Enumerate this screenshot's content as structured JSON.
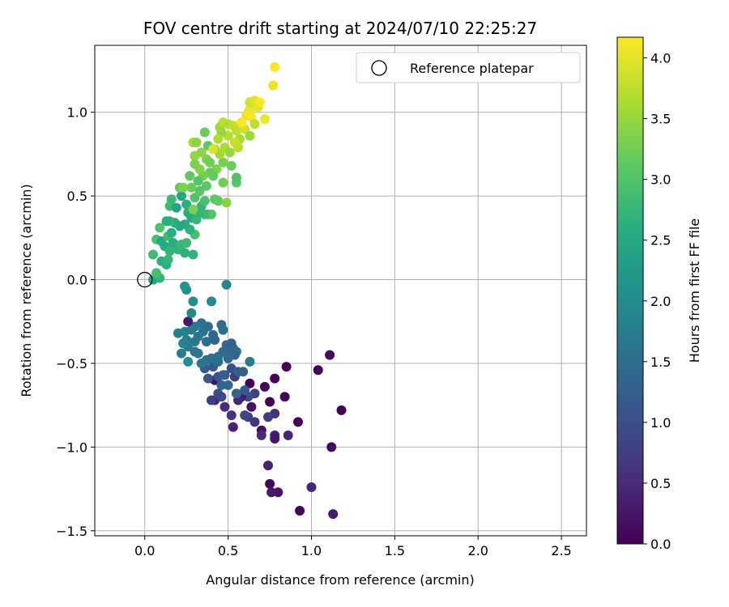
{
  "chart_data": {
    "type": "scatter",
    "title": "FOV centre drift starting at 2024/07/10 22:25:27",
    "xlabel": "Angular distance from reference (arcmin)",
    "ylabel": "Rotation from reference (arcmin)",
    "xlim": [
      -0.3,
      2.65
    ],
    "ylim": [
      -1.53,
      1.4
    ],
    "x_ticks": [
      0.0,
      0.5,
      1.0,
      1.5,
      2.0,
      2.5
    ],
    "x_tick_labels": [
      "0.0",
      "0.5",
      "1.0",
      "1.5",
      "2.0",
      "2.5"
    ],
    "y_ticks": [
      -1.5,
      -1.0,
      -0.5,
      0.0,
      0.5,
      1.0
    ],
    "y_tick_labels": [
      "−1.5",
      "−1.0",
      "−0.5",
      "0.0",
      "0.5",
      "1.0"
    ],
    "grid": true,
    "legend": {
      "placement": "top-right",
      "entries": [
        "Reference platepar"
      ]
    },
    "colorbar": {
      "label": "Hours from first FF file",
      "colormap": "viridis",
      "range": [
        0.0,
        4.17
      ],
      "ticks": [
        0.0,
        0.5,
        1.0,
        1.5,
        2.0,
        2.5,
        3.0,
        3.5,
        4.0
      ],
      "tick_labels": [
        "0.0",
        "0.5",
        "1.0",
        "1.5",
        "2.0",
        "2.5",
        "3.0",
        "3.5",
        "4.0"
      ]
    },
    "reference_point": {
      "name": "Reference platepar",
      "x": 0.0,
      "y": 0.0
    },
    "points": [
      {
        "x": 0.93,
        "y": -1.38,
        "t": 0.06
      },
      {
        "x": 0.75,
        "y": -1.22,
        "t": 0.08
      },
      {
        "x": 0.8,
        "y": -1.27,
        "t": 0.22
      },
      {
        "x": 0.76,
        "y": -1.27,
        "t": 0.28
      },
      {
        "x": 1.13,
        "y": -1.4,
        "t": 0.32
      },
      {
        "x": 1.0,
        "y": -1.24,
        "t": 0.45
      },
      {
        "x": 0.74,
        "y": -1.11,
        "t": 0.4
      },
      {
        "x": 1.12,
        "y": -1.0,
        "t": 0.1
      },
      {
        "x": 0.7,
        "y": -0.9,
        "t": 0.15
      },
      {
        "x": 0.92,
        "y": -0.85,
        "t": 0.05
      },
      {
        "x": 1.18,
        "y": -0.78,
        "t": 0.03
      },
      {
        "x": 1.04,
        "y": -0.54,
        "t": 0.02
      },
      {
        "x": 1.11,
        "y": -0.45,
        "t": 0.12
      },
      {
        "x": 0.85,
        "y": -0.52,
        "t": 0.04
      },
      {
        "x": 0.78,
        "y": -0.59,
        "t": 0.06
      },
      {
        "x": 0.84,
        "y": -0.7,
        "t": 0.08
      },
      {
        "x": 0.72,
        "y": -0.64,
        "t": 0.1
      },
      {
        "x": 0.75,
        "y": -0.73,
        "t": 0.02
      },
      {
        "x": 0.78,
        "y": -0.8,
        "t": 0.55
      },
      {
        "x": 0.78,
        "y": -0.93,
        "t": 0.35
      },
      {
        "x": 0.78,
        "y": -0.95,
        "t": 0.25
      },
      {
        "x": 0.86,
        "y": -0.93,
        "t": 0.42
      },
      {
        "x": 0.74,
        "y": -0.82,
        "t": 0.7
      },
      {
        "x": 0.7,
        "y": -0.93,
        "t": 0.5
      },
      {
        "x": 0.66,
        "y": -0.85,
        "t": 0.62
      },
      {
        "x": 0.62,
        "y": -0.82,
        "t": 0.8
      },
      {
        "x": 0.6,
        "y": -0.81,
        "t": 0.9
      },
      {
        "x": 0.64,
        "y": -0.76,
        "t": 0.2
      },
      {
        "x": 0.66,
        "y": -0.68,
        "t": 0.85
      },
      {
        "x": 0.62,
        "y": -0.7,
        "t": 0.95
      },
      {
        "x": 0.58,
        "y": -0.7,
        "t": 0.3
      },
      {
        "x": 0.56,
        "y": -0.72,
        "t": 0.45
      },
      {
        "x": 0.52,
        "y": -0.81,
        "t": 0.6
      },
      {
        "x": 0.53,
        "y": -0.88,
        "t": 0.4
      },
      {
        "x": 0.48,
        "y": -0.76,
        "t": 0.52
      },
      {
        "x": 0.42,
        "y": -0.72,
        "t": 0.35
      },
      {
        "x": 0.4,
        "y": -0.72,
        "t": 0.75
      },
      {
        "x": 0.44,
        "y": -0.68,
        "t": 1.0
      },
      {
        "x": 0.46,
        "y": -0.7,
        "t": 0.88
      },
      {
        "x": 0.42,
        "y": -0.6,
        "t": 0.18
      },
      {
        "x": 0.38,
        "y": -0.59,
        "t": 1.1
      },
      {
        "x": 0.36,
        "y": -0.53,
        "t": 1.2
      },
      {
        "x": 0.41,
        "y": -0.52,
        "t": 1.15
      },
      {
        "x": 0.44,
        "y": -0.58,
        "t": 1.05
      },
      {
        "x": 0.48,
        "y": -0.57,
        "t": 1.0
      },
      {
        "x": 0.52,
        "y": -0.53,
        "t": 0.98
      },
      {
        "x": 0.54,
        "y": -0.58,
        "t": 0.7
      },
      {
        "x": 0.59,
        "y": -0.55,
        "t": 1.25
      },
      {
        "x": 0.63,
        "y": -0.62,
        "t": 0.05
      },
      {
        "x": 0.6,
        "y": -0.66,
        "t": 1.18
      },
      {
        "x": 0.55,
        "y": -0.68,
        "t": 1.3
      },
      {
        "x": 0.5,
        "y": -0.63,
        "t": 1.4
      },
      {
        "x": 0.46,
        "y": -0.63,
        "t": 1.35
      },
      {
        "x": 0.44,
        "y": -0.49,
        "t": 1.45
      },
      {
        "x": 0.4,
        "y": -0.47,
        "t": 1.5
      },
      {
        "x": 0.37,
        "y": -0.48,
        "t": 1.55
      },
      {
        "x": 0.34,
        "y": -0.5,
        "t": 1.6
      },
      {
        "x": 0.32,
        "y": -0.44,
        "t": 1.65
      },
      {
        "x": 0.3,
        "y": -0.43,
        "t": 1.6
      },
      {
        "x": 0.26,
        "y": -0.4,
        "t": 1.7
      },
      {
        "x": 0.22,
        "y": -0.44,
        "t": 1.75
      },
      {
        "x": 0.2,
        "y": -0.32,
        "t": 1.8
      },
      {
        "x": 0.24,
        "y": -0.31,
        "t": 1.85
      },
      {
        "x": 0.23,
        "y": -0.38,
        "t": 1.9
      },
      {
        "x": 0.25,
        "y": -0.36,
        "t": 1.78
      },
      {
        "x": 0.26,
        "y": -0.49,
        "t": 2.0
      },
      {
        "x": 0.28,
        "y": -0.3,
        "t": 1.72
      },
      {
        "x": 0.3,
        "y": -0.37,
        "t": 1.68
      },
      {
        "x": 0.32,
        "y": -0.34,
        "t": 1.62
      },
      {
        "x": 0.35,
        "y": -0.31,
        "t": 1.58
      },
      {
        "x": 0.37,
        "y": -0.37,
        "t": 1.52
      },
      {
        "x": 0.38,
        "y": -0.28,
        "t": 1.48
      },
      {
        "x": 0.34,
        "y": -0.26,
        "t": 1.56
      },
      {
        "x": 0.3,
        "y": -0.28,
        "t": 1.66
      },
      {
        "x": 0.26,
        "y": -0.25,
        "t": 0.3
      },
      {
        "x": 0.28,
        "y": -0.2,
        "t": 1.92
      },
      {
        "x": 0.25,
        "y": -0.06,
        "t": 2.05
      },
      {
        "x": 0.24,
        "y": -0.04,
        "t": 2.1
      },
      {
        "x": 0.29,
        "y": -0.13,
        "t": 2.02
      },
      {
        "x": 0.4,
        "y": -0.13,
        "t": 1.96
      },
      {
        "x": 0.41,
        "y": -0.33,
        "t": 1.42
      },
      {
        "x": 0.42,
        "y": -0.36,
        "t": 1.38
      },
      {
        "x": 0.46,
        "y": -0.27,
        "t": 1.44
      },
      {
        "x": 0.47,
        "y": -0.3,
        "t": 1.46
      },
      {
        "x": 0.49,
        "y": -0.39,
        "t": 1.41
      },
      {
        "x": 0.5,
        "y": -0.42,
        "t": 1.36
      },
      {
        "x": 0.53,
        "y": -0.41,
        "t": 1.43
      },
      {
        "x": 0.55,
        "y": -0.43,
        "t": 1.5
      },
      {
        "x": 0.54,
        "y": -0.45,
        "t": 1.33
      },
      {
        "x": 0.52,
        "y": -0.38,
        "t": 1.31
      },
      {
        "x": 0.47,
        "y": -0.43,
        "t": 1.47
      },
      {
        "x": 0.44,
        "y": -0.46,
        "t": 1.53
      },
      {
        "x": 0.5,
        "y": -0.47,
        "t": 1.4
      },
      {
        "x": 0.49,
        "y": -0.03,
        "t": 1.9
      },
      {
        "x": 0.63,
        "y": -0.49,
        "t": 1.7
      },
      {
        "x": 0.56,
        "y": -0.55,
        "t": 1.28
      },
      {
        "x": 0.47,
        "y": -0.57,
        "t": 1.22
      },
      {
        "x": 0.05,
        "y": 0.0,
        "t": 2.4
      },
      {
        "x": 0.09,
        "y": 0.01,
        "t": 2.7
      },
      {
        "x": 0.07,
        "y": 0.04,
        "t": 2.9
      },
      {
        "x": 0.05,
        "y": 0.15,
        "t": 2.85
      },
      {
        "x": 0.1,
        "y": 0.11,
        "t": 2.6
      },
      {
        "x": 0.13,
        "y": 0.09,
        "t": 2.65
      },
      {
        "x": 0.14,
        "y": 0.12,
        "t": 2.75
      },
      {
        "x": 0.12,
        "y": 0.2,
        "t": 2.55
      },
      {
        "x": 0.07,
        "y": 0.24,
        "t": 2.95
      },
      {
        "x": 0.1,
        "y": 0.23,
        "t": 2.5
      },
      {
        "x": 0.14,
        "y": 0.26,
        "t": 2.88
      },
      {
        "x": 0.16,
        "y": 0.28,
        "t": 2.62
      },
      {
        "x": 0.15,
        "y": 0.17,
        "t": 2.72
      },
      {
        "x": 0.17,
        "y": 0.22,
        "t": 2.58
      },
      {
        "x": 0.2,
        "y": 0.18,
        "t": 2.68
      },
      {
        "x": 0.22,
        "y": 0.21,
        "t": 2.78
      },
      {
        "x": 0.25,
        "y": 0.22,
        "t": 2.82
      },
      {
        "x": 0.24,
        "y": 0.16,
        "t": 2.66
      },
      {
        "x": 0.29,
        "y": 0.15,
        "t": 2.7
      },
      {
        "x": 0.3,
        "y": 0.27,
        "t": 2.92
      },
      {
        "x": 0.27,
        "y": 0.3,
        "t": 2.64
      },
      {
        "x": 0.24,
        "y": 0.33,
        "t": 2.52
      },
      {
        "x": 0.21,
        "y": 0.32,
        "t": 2.46
      },
      {
        "x": 0.18,
        "y": 0.34,
        "t": 2.56
      },
      {
        "x": 0.15,
        "y": 0.35,
        "t": 2.76
      },
      {
        "x": 0.13,
        "y": 0.35,
        "t": 2.62
      },
      {
        "x": 0.09,
        "y": 0.31,
        "t": 2.98
      },
      {
        "x": 0.15,
        "y": 0.44,
        "t": 2.85
      },
      {
        "x": 0.19,
        "y": 0.43,
        "t": 2.42
      },
      {
        "x": 0.16,
        "y": 0.48,
        "t": 2.8
      },
      {
        "x": 0.22,
        "y": 0.5,
        "t": 2.48
      },
      {
        "x": 0.21,
        "y": 0.55,
        "t": 3.1
      },
      {
        "x": 0.25,
        "y": 0.45,
        "t": 2.6
      },
      {
        "x": 0.26,
        "y": 0.4,
        "t": 2.58
      },
      {
        "x": 0.28,
        "y": 0.37,
        "t": 2.54
      },
      {
        "x": 0.31,
        "y": 0.36,
        "t": 2.74
      },
      {
        "x": 0.33,
        "y": 0.4,
        "t": 2.68
      },
      {
        "x": 0.34,
        "y": 0.44,
        "t": 2.72
      },
      {
        "x": 0.29,
        "y": 0.42,
        "t": 3.3
      },
      {
        "x": 0.3,
        "y": 0.49,
        "t": 3.0
      },
      {
        "x": 0.28,
        "y": 0.55,
        "t": 3.2
      },
      {
        "x": 0.33,
        "y": 0.53,
        "t": 3.05
      },
      {
        "x": 0.36,
        "y": 0.47,
        "t": 2.94
      },
      {
        "x": 0.38,
        "y": 0.39,
        "t": 2.9
      },
      {
        "x": 0.4,
        "y": 0.39,
        "t": 3.02
      },
      {
        "x": 0.42,
        "y": 0.48,
        "t": 3.1
      },
      {
        "x": 0.44,
        "y": 0.47,
        "t": 3.15
      },
      {
        "x": 0.49,
        "y": 0.46,
        "t": 3.4
      },
      {
        "x": 0.47,
        "y": 0.58,
        "t": 3.25
      },
      {
        "x": 0.55,
        "y": 0.58,
        "t": 3.06
      },
      {
        "x": 0.55,
        "y": 0.61,
        "t": 3.0
      },
      {
        "x": 0.52,
        "y": 0.68,
        "t": 3.2
      },
      {
        "x": 0.47,
        "y": 0.7,
        "t": 3.3
      },
      {
        "x": 0.43,
        "y": 0.66,
        "t": 3.35
      },
      {
        "x": 0.41,
        "y": 0.62,
        "t": 3.12
      },
      {
        "x": 0.39,
        "y": 0.64,
        "t": 3.18
      },
      {
        "x": 0.37,
        "y": 0.56,
        "t": 3.08
      },
      {
        "x": 0.35,
        "y": 0.62,
        "t": 3.28
      },
      {
        "x": 0.33,
        "y": 0.66,
        "t": 3.38
      },
      {
        "x": 0.27,
        "y": 0.62,
        "t": 3.14
      },
      {
        "x": 0.3,
        "y": 0.69,
        "t": 3.32
      },
      {
        "x": 0.3,
        "y": 0.74,
        "t": 3.48
      },
      {
        "x": 0.34,
        "y": 0.76,
        "t": 3.42
      },
      {
        "x": 0.37,
        "y": 0.72,
        "t": 3.36
      },
      {
        "x": 0.39,
        "y": 0.7,
        "t": 3.24
      },
      {
        "x": 0.42,
        "y": 0.78,
        "t": 3.52
      },
      {
        "x": 0.45,
        "y": 0.75,
        "t": 3.58
      },
      {
        "x": 0.48,
        "y": 0.79,
        "t": 3.62
      },
      {
        "x": 0.51,
        "y": 0.76,
        "t": 3.5
      },
      {
        "x": 0.5,
        "y": 0.86,
        "t": 3.7
      },
      {
        "x": 0.46,
        "y": 0.88,
        "t": 3.46
      },
      {
        "x": 0.44,
        "y": 0.84,
        "t": 3.66
      },
      {
        "x": 0.38,
        "y": 0.8,
        "t": 3.1
      },
      {
        "x": 0.36,
        "y": 0.88,
        "t": 3.22
      },
      {
        "x": 0.29,
        "y": 0.82,
        "t": 3.6
      },
      {
        "x": 0.31,
        "y": 0.82,
        "t": 3.44
      },
      {
        "x": 0.41,
        "y": 0.78,
        "t": 3.95
      },
      {
        "x": 0.45,
        "y": 0.91,
        "t": 3.56
      },
      {
        "x": 0.47,
        "y": 0.94,
        "t": 3.72
      },
      {
        "x": 0.5,
        "y": 0.93,
        "t": 3.68
      },
      {
        "x": 0.53,
        "y": 0.92,
        "t": 3.8
      },
      {
        "x": 0.55,
        "y": 0.89,
        "t": 3.78
      },
      {
        "x": 0.57,
        "y": 0.84,
        "t": 3.64
      },
      {
        "x": 0.56,
        "y": 0.79,
        "t": 3.74
      },
      {
        "x": 0.54,
        "y": 0.82,
        "t": 3.84
      },
      {
        "x": 0.58,
        "y": 0.93,
        "t": 3.86
      },
      {
        "x": 0.6,
        "y": 0.9,
        "t": 3.9
      },
      {
        "x": 0.63,
        "y": 0.86,
        "t": 3.54
      },
      {
        "x": 0.61,
        "y": 0.98,
        "t": 4.02
      },
      {
        "x": 0.62,
        "y": 1.0,
        "t": 4.1
      },
      {
        "x": 0.63,
        "y": 1.02,
        "t": 4.08
      },
      {
        "x": 0.64,
        "y": 0.97,
        "t": 4.12
      },
      {
        "x": 0.65,
        "y": 1.05,
        "t": 3.96
      },
      {
        "x": 0.63,
        "y": 1.06,
        "t": 3.88
      },
      {
        "x": 0.66,
        "y": 1.07,
        "t": 3.98
      },
      {
        "x": 0.68,
        "y": 1.03,
        "t": 4.0
      },
      {
        "x": 0.66,
        "y": 0.93,
        "t": 3.76
      },
      {
        "x": 0.72,
        "y": 0.96,
        "t": 4.05
      },
      {
        "x": 0.69,
        "y": 1.06,
        "t": 4.14
      },
      {
        "x": 0.58,
        "y": 0.94,
        "t": 4.16
      },
      {
        "x": 0.77,
        "y": 1.16,
        "t": 4.06
      },
      {
        "x": 0.78,
        "y": 1.27,
        "t": 4.15
      },
      {
        "x": 0.36,
        "y": 0.39,
        "t": 2.8
      },
      {
        "x": 0.32,
        "y": 0.59,
        "t": 3.04
      },
      {
        "x": 0.23,
        "y": 0.55,
        "t": 3.34
      }
    ]
  }
}
